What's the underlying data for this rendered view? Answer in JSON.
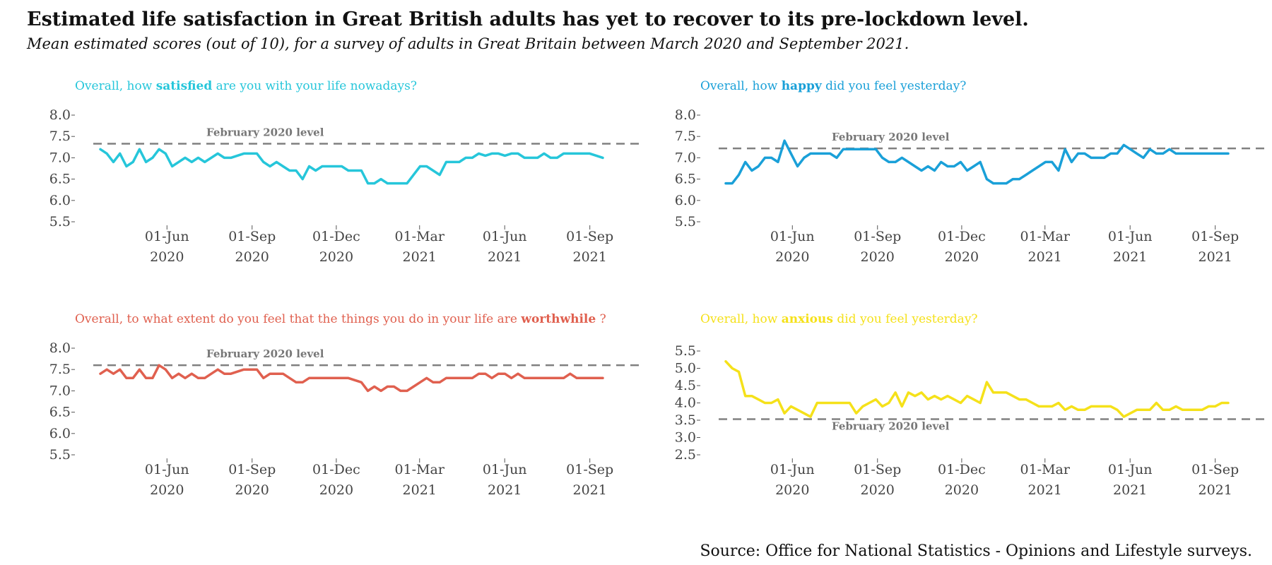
{
  "title": "Estimated life satisfaction in Great British adults has yet to recover to its pre-lockdown level.",
  "subtitle": "Mean estimated scores (out of 10), for a survey of adults in Great Britain between March 2020 and September 2021.",
  "source": "Source: Office for National Statistics - Opinions and Lifestyle surveys.",
  "reference_label": "February 2020 level",
  "chart_data": [
    {
      "type": "line",
      "question": {
        "pre": "Overall, how ",
        "bold": "satisfied",
        "post": " are you with your life nowadays?"
      },
      "color": "#26c6da",
      "x_start": "2020-03-21",
      "x_end": "2021-09-15",
      "x_ticks": [
        {
          "date": "2020-06-01",
          "label": [
            "01-Jun",
            "2020"
          ]
        },
        {
          "date": "2020-09-01",
          "label": [
            "01-Sep",
            "2020"
          ]
        },
        {
          "date": "2020-12-01",
          "label": [
            "01-Dec",
            "2020"
          ]
        },
        {
          "date": "2021-03-01",
          "label": [
            "01-Mar",
            "2021"
          ]
        },
        {
          "date": "2021-06-01",
          "label": [
            "01-Jun",
            "2021"
          ]
        },
        {
          "date": "2021-09-01",
          "label": [
            "01-Sep",
            "2021"
          ]
        }
      ],
      "y_ticks": [
        "5.5",
        "6.0",
        "6.5",
        "7.0",
        "7.5",
        "8.0"
      ],
      "ylim": [
        5.5,
        8.0
      ],
      "reference": 7.33,
      "ref_label_pos": "above",
      "values": [
        7.2,
        7.1,
        6.9,
        7.1,
        6.8,
        6.9,
        7.2,
        6.9,
        7.0,
        7.2,
        7.1,
        6.8,
        6.9,
        7.0,
        6.9,
        7.0,
        6.9,
        7.0,
        7.1,
        7.0,
        7.0,
        7.05,
        7.1,
        7.1,
        7.1,
        6.9,
        6.8,
        6.9,
        6.8,
        6.7,
        6.7,
        6.5,
        6.8,
        6.7,
        6.8,
        6.8,
        6.8,
        6.8,
        6.7,
        6.7,
        6.7,
        6.4,
        6.4,
        6.5,
        6.4,
        6.4,
        6.4,
        6.4,
        6.6,
        6.8,
        6.8,
        6.7,
        6.6,
        6.9,
        6.9,
        6.9,
        7.0,
        7.0,
        7.1,
        7.05,
        7.1,
        7.1,
        7.05,
        7.1,
        7.1,
        7.0,
        7.0,
        7.0,
        7.1,
        7.0,
        7.0,
        7.1,
        7.1,
        7.1,
        7.1,
        7.1,
        7.05,
        7.0
      ]
    },
    {
      "type": "line",
      "question": {
        "pre": "Overall, how ",
        "bold": "happy",
        "post": " did you feel yesterday?"
      },
      "color": "#1aa0d8",
      "x_start": "2020-03-21",
      "x_end": "2021-09-15",
      "x_ticks": [
        {
          "date": "2020-06-01",
          "label": [
            "01-Jun",
            "2020"
          ]
        },
        {
          "date": "2020-09-01",
          "label": [
            "01-Sep",
            "2020"
          ]
        },
        {
          "date": "2020-12-01",
          "label": [
            "01-Dec",
            "2020"
          ]
        },
        {
          "date": "2021-03-01",
          "label": [
            "01-Mar",
            "2021"
          ]
        },
        {
          "date": "2021-06-01",
          "label": [
            "01-Jun",
            "2021"
          ]
        },
        {
          "date": "2021-09-01",
          "label": [
            "01-Sep",
            "2021"
          ]
        }
      ],
      "y_ticks": [
        "5.5",
        "6.0",
        "6.5",
        "7.0",
        "7.5",
        "8.0"
      ],
      "ylim": [
        5.5,
        8.0
      ],
      "reference": 7.22,
      "ref_label_pos": "above",
      "values": [
        6.4,
        6.4,
        6.6,
        6.9,
        6.7,
        6.8,
        7.0,
        7.0,
        6.9,
        7.4,
        7.1,
        6.8,
        7.0,
        7.1,
        7.1,
        7.1,
        7.1,
        7.0,
        7.2,
        7.2,
        7.2,
        7.2,
        7.2,
        7.2,
        7.0,
        6.9,
        6.9,
        7.0,
        6.9,
        6.8,
        6.7,
        6.8,
        6.7,
        6.9,
        6.8,
        6.8,
        6.9,
        6.7,
        6.8,
        6.9,
        6.5,
        6.4,
        6.4,
        6.4,
        6.5,
        6.5,
        6.6,
        6.7,
        6.8,
        6.9,
        6.9,
        6.7,
        7.2,
        6.9,
        7.1,
        7.1,
        7.0,
        7.0,
        7.0,
        7.1,
        7.1,
        7.3,
        7.2,
        7.1,
        7.0,
        7.2,
        7.1,
        7.1,
        7.2,
        7.1,
        7.1,
        7.1,
        7.1,
        7.1,
        7.1,
        7.1,
        7.1,
        7.1
      ]
    },
    {
      "type": "line",
      "question": {
        "pre": "Overall, to what extent do you feel that the things you do in your life are  ",
        "bold": "worthwhile",
        "post": " ?"
      },
      "color": "#e0604f",
      "x_start": "2020-03-21",
      "x_end": "2021-09-15",
      "x_ticks": [
        {
          "date": "2020-06-01",
          "label": [
            "01-Jun",
            "2020"
          ]
        },
        {
          "date": "2020-09-01",
          "label": [
            "01-Sep",
            "2020"
          ]
        },
        {
          "date": "2020-12-01",
          "label": [
            "01-Dec",
            "2020"
          ]
        },
        {
          "date": "2021-03-01",
          "label": [
            "01-Mar",
            "2021"
          ]
        },
        {
          "date": "2021-06-01",
          "label": [
            "01-Jun",
            "2021"
          ]
        },
        {
          "date": "2021-09-01",
          "label": [
            "01-Sep",
            "2021"
          ]
        }
      ],
      "y_ticks": [
        "5.5",
        "6.0",
        "6.5",
        "7.0",
        "7.5",
        "8.0"
      ],
      "ylim": [
        5.5,
        8.0
      ],
      "reference": 7.6,
      "ref_label_pos": "above",
      "values": [
        7.4,
        7.5,
        7.4,
        7.5,
        7.3,
        7.3,
        7.5,
        7.3,
        7.3,
        7.6,
        7.5,
        7.3,
        7.4,
        7.3,
        7.4,
        7.3,
        7.3,
        7.4,
        7.5,
        7.4,
        7.4,
        7.45,
        7.5,
        7.5,
        7.5,
        7.3,
        7.4,
        7.4,
        7.4,
        7.3,
        7.2,
        7.2,
        7.3,
        7.3,
        7.3,
        7.3,
        7.3,
        7.3,
        7.3,
        7.25,
        7.2,
        7.0,
        7.1,
        7.0,
        7.1,
        7.1,
        7.0,
        7.0,
        7.1,
        7.2,
        7.3,
        7.2,
        7.2,
        7.3,
        7.3,
        7.3,
        7.3,
        7.3,
        7.4,
        7.4,
        7.3,
        7.4,
        7.4,
        7.3,
        7.4,
        7.3,
        7.3,
        7.3,
        7.3,
        7.3,
        7.3,
        7.3,
        7.4,
        7.3,
        7.3,
        7.3,
        7.3,
        7.3
      ]
    },
    {
      "type": "line",
      "question": {
        "pre": "Overall, how ",
        "bold": "anxious",
        "post": " did you feel yesterday?"
      },
      "color": "#f5e11a",
      "x_start": "2020-03-21",
      "x_end": "2021-09-15",
      "x_ticks": [
        {
          "date": "2020-06-01",
          "label": [
            "01-Jun",
            "2020"
          ]
        },
        {
          "date": "2020-09-01",
          "label": [
            "01-Sep",
            "2020"
          ]
        },
        {
          "date": "2020-12-01",
          "label": [
            "01-Dec",
            "2020"
          ]
        },
        {
          "date": "2021-03-01",
          "label": [
            "01-Mar",
            "2021"
          ]
        },
        {
          "date": "2021-06-01",
          "label": [
            "01-Jun",
            "2021"
          ]
        },
        {
          "date": "2021-09-01",
          "label": [
            "01-Sep",
            "2021"
          ]
        }
      ],
      "y_ticks": [
        "2.5",
        "3.0",
        "3.5",
        "4.0",
        "4.5",
        "5.0",
        "5.5"
      ],
      "ylim": [
        2.5,
        5.5
      ],
      "reference": 3.53,
      "ref_label_pos": "below",
      "values": [
        5.2,
        5.0,
        4.9,
        4.2,
        4.2,
        4.1,
        4.0,
        4.0,
        4.1,
        3.7,
        3.9,
        3.8,
        3.7,
        3.6,
        4.0,
        4.0,
        4.0,
        4.0,
        4.0,
        4.0,
        3.7,
        3.9,
        4.0,
        4.1,
        3.9,
        4.0,
        4.3,
        3.9,
        4.3,
        4.2,
        4.3,
        4.1,
        4.2,
        4.1,
        4.2,
        4.1,
        4.0,
        4.2,
        4.1,
        4.0,
        4.6,
        4.3,
        4.3,
        4.3,
        4.2,
        4.1,
        4.1,
        4.0,
        3.9,
        3.9,
        3.9,
        4.0,
        3.8,
        3.9,
        3.8,
        3.8,
        3.9,
        3.9,
        3.9,
        3.9,
        3.8,
        3.6,
        3.7,
        3.8,
        3.8,
        3.8,
        4.0,
        3.8,
        3.8,
        3.9,
        3.8,
        3.8,
        3.8,
        3.8,
        3.9,
        3.9,
        4.0,
        4.0
      ]
    }
  ]
}
